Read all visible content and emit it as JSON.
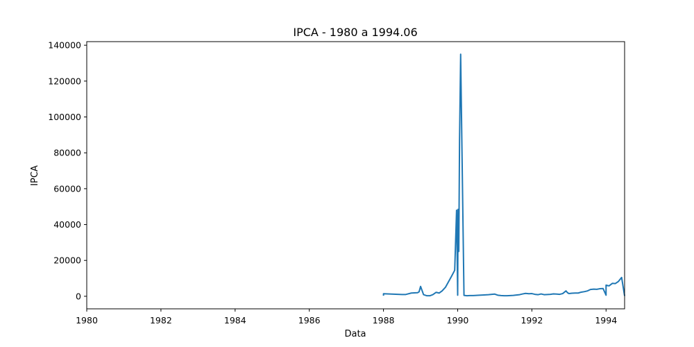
{
  "chart_data": {
    "type": "line",
    "title": "IPCA - 1980 a 1994.06",
    "xlabel": "Data",
    "ylabel": "IPCA",
    "xlim": [
      1980,
      1994.5
    ],
    "ylim": [
      -7000,
      142000
    ],
    "xticks": [
      1980,
      1982,
      1984,
      1986,
      1988,
      1990,
      1992,
      1994
    ],
    "yticks": [
      0,
      20000,
      40000,
      60000,
      80000,
      100000,
      120000,
      140000
    ],
    "grid": false,
    "legend": "none",
    "series": [
      {
        "color": "#1f77b4",
        "x": [
          1988.0,
          1988.0,
          1988.5,
          1988.6,
          1988.75,
          1988.83,
          1988.92,
          1988.96,
          1989.0,
          1989.08,
          1989.17,
          1989.25,
          1989.33,
          1989.42,
          1989.5,
          1989.58,
          1989.67,
          1989.75,
          1989.83,
          1989.92,
          1989.97,
          1990.0,
          1990.01,
          1990.03,
          1990.05,
          1990.08,
          1990.17,
          1990.25,
          1990.33,
          1990.42,
          1990.5,
          1990.58,
          1990.67,
          1990.75,
          1990.83,
          1990.92,
          1991.0,
          1991.08,
          1991.17,
          1991.25,
          1991.33,
          1991.42,
          1991.5,
          1991.58,
          1991.67,
          1991.75,
          1991.83,
          1991.92,
          1992.0,
          1992.08,
          1992.17,
          1992.25,
          1992.33,
          1992.42,
          1992.5,
          1992.58,
          1992.67,
          1992.75,
          1992.83,
          1992.92,
          1992.96,
          1993.0,
          1993.08,
          1993.17,
          1993.25,
          1993.33,
          1993.42,
          1993.5,
          1993.58,
          1993.67,
          1993.75,
          1993.83,
          1993.92,
          1994.0,
          1994.0,
          1994.08,
          1994.17,
          1994.25,
          1994.33,
          1994.42,
          1994.5
        ],
        "y": [
          300,
          1400,
          1000,
          1000,
          1800,
          1900,
          2000,
          2500,
          5500,
          900,
          300,
          300,
          900,
          2200,
          1800,
          3000,
          5000,
          8000,
          11000,
          14500,
          48000,
          600,
          48500,
          25000,
          87000,
          135000,
          500,
          300,
          400,
          400,
          500,
          600,
          700,
          800,
          900,
          1100,
          1200,
          600,
          400,
          300,
          300,
          400,
          500,
          700,
          900,
          1300,
          1600,
          1400,
          1500,
          1100,
          900,
          1300,
          900,
          1000,
          1100,
          1300,
          1200,
          1100,
          1500,
          3000,
          2000,
          1500,
          1700,
          1800,
          1800,
          2300,
          2600,
          3000,
          3800,
          4000,
          3900,
          4200,
          4300,
          600,
          6200,
          5800,
          7200,
          7100,
          8200,
          10500,
          200
        ]
      }
    ]
  }
}
